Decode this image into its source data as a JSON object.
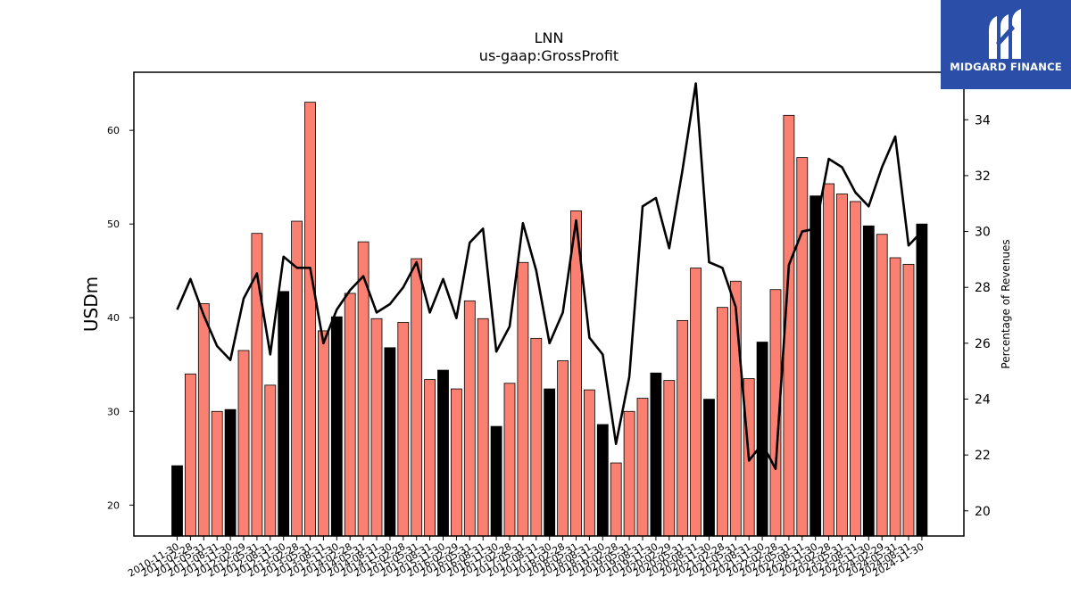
{
  "brand": {
    "name": "MIDGARD FINANCE",
    "logo_icon": "midgard-m-logo-icon",
    "background": "#2b4fa8"
  },
  "colors": {
    "annual_bar": "#000000",
    "quarter_bar": "#fa8072",
    "line": "#000000"
  },
  "chart_data": {
    "type": "bar",
    "title": "LNN",
    "subtitle": "us-gaap:GrossProfit",
    "ylabel": "USDm",
    "y2label": "Percentage of Revenues",
    "ylim": [
      16.7,
      66.2
    ],
    "y2lim": [
      19.1,
      35.7
    ],
    "yticks": [
      20,
      30,
      40,
      50,
      60
    ],
    "y2ticks": [
      20,
      22,
      24,
      26,
      28,
      30,
      32,
      34
    ],
    "categories": [
      "2010-11-30",
      "2011-02-28",
      "2011-05-31",
      "2011-08-31",
      "2011-11-30",
      "2012-02-29",
      "2012-05-31",
      "2012-08-31",
      "2012-11-30",
      "2013-02-28",
      "2013-05-31",
      "2013-08-31",
      "2013-11-30",
      "2014-02-28",
      "2014-05-31",
      "2014-08-31",
      "2014-11-30",
      "2015-02-28",
      "2015-05-31",
      "2015-08-31",
      "2015-11-30",
      "2016-02-29",
      "2016-05-31",
      "2016-08-31",
      "2016-11-30",
      "2017-02-28",
      "2017-05-31",
      "2017-08-31",
      "2017-11-30",
      "2018-02-28",
      "2018-05-31",
      "2018-08-31",
      "2018-11-30",
      "2019-02-28",
      "2019-05-31",
      "2019-08-31",
      "2019-11-30",
      "2020-02-29",
      "2020-05-31",
      "2020-08-31",
      "2020-11-30",
      "2021-02-28",
      "2021-05-31",
      "2021-08-31",
      "2021-11-30",
      "2022-02-28",
      "2022-05-31",
      "2022-08-31",
      "2022-11-30",
      "2023-02-28",
      "2023-05-31",
      "2023-08-31",
      "2023-11-30",
      "2024-02-29",
      "2024-05-31",
      "2024-08-31",
      "2024-11-30"
    ],
    "values": [
      24.2,
      34.0,
      41.5,
      30.0,
      30.2,
      36.5,
      49.0,
      32.8,
      42.8,
      50.3,
      63.0,
      38.6,
      40.1,
      42.6,
      48.1,
      39.9,
      36.8,
      39.5,
      46.3,
      33.4,
      34.4,
      32.4,
      41.8,
      39.9,
      28.4,
      33.0,
      45.9,
      37.8,
      32.4,
      35.4,
      51.4,
      32.3,
      28.6,
      24.5,
      30.0,
      31.4,
      34.1,
      33.3,
      39.7,
      45.3,
      31.3,
      41.1,
      43.9,
      33.5,
      37.4,
      43.0,
      61.6,
      57.1,
      53.0,
      54.3,
      53.2,
      52.4,
      49.8,
      48.9,
      46.4,
      45.7,
      50.0
    ],
    "fiscal_year_end": [
      true,
      false,
      false,
      false,
      true,
      false,
      false,
      false,
      true,
      false,
      false,
      false,
      true,
      false,
      false,
      false,
      true,
      false,
      false,
      false,
      true,
      false,
      false,
      false,
      true,
      false,
      false,
      false,
      true,
      false,
      false,
      false,
      true,
      false,
      false,
      false,
      true,
      false,
      false,
      false,
      true,
      false,
      false,
      false,
      true,
      false,
      false,
      false,
      true,
      false,
      false,
      false,
      true,
      false,
      false,
      false,
      true
    ],
    "series": [
      {
        "values": [
          24.2,
          34.0,
          41.5,
          30.0,
          30.2,
          36.5,
          49.0,
          32.8,
          42.8,
          50.3,
          63.0,
          38.6,
          40.1,
          42.6,
          48.1,
          39.9,
          36.8,
          39.5,
          46.3,
          33.4,
          34.4,
          32.4,
          41.8,
          39.9,
          28.4,
          33.0,
          45.9,
          37.8,
          32.4,
          35.4,
          51.4,
          32.3,
          28.6,
          24.5,
          30.0,
          31.4,
          34.1,
          33.3,
          39.7,
          45.3,
          31.3,
          41.1,
          43.9,
          33.5,
          37.4,
          43.0,
          61.6,
          57.1,
          53.0,
          54.3,
          53.2,
          52.4,
          49.8,
          48.9,
          46.4,
          45.7,
          50.0
        ],
        "axis": "left",
        "type": "bar"
      },
      {
        "values": [
          27.2,
          28.3,
          27.0,
          25.9,
          25.4,
          27.6,
          28.5,
          25.6,
          29.1,
          28.7,
          28.7,
          26.0,
          27.2,
          27.9,
          28.4,
          27.1,
          27.4,
          28.0,
          28.9,
          27.1,
          28.3,
          26.9,
          29.6,
          30.1,
          25.7,
          26.6,
          30.3,
          28.6,
          26.0,
          27.1,
          30.4,
          26.2,
          25.6,
          22.4,
          24.8,
          30.9,
          31.2,
          29.4,
          32.2,
          35.3,
          28.9,
          28.7,
          27.3,
          21.8,
          22.4,
          21.5,
          28.8,
          30.0,
          30.1,
          32.6,
          32.3,
          31.4,
          30.9,
          32.3,
          33.4,
          29.5,
          30.0
        ],
        "axis": "right",
        "type": "line"
      }
    ]
  }
}
